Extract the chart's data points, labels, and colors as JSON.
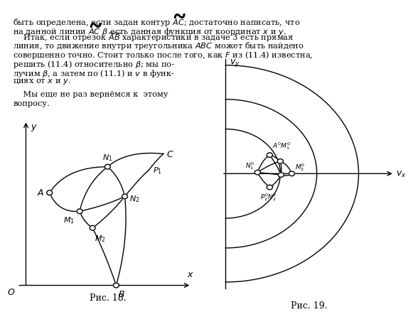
{
  "background_color": "#ffffff",
  "fig18_caption": "Рис. 18.",
  "fig19_caption": "Рис. 19.",
  "lw": 1.0,
  "col": "#000000",
  "text_fontsize": 8.2,
  "fig_caption_fontsize": 9.0
}
